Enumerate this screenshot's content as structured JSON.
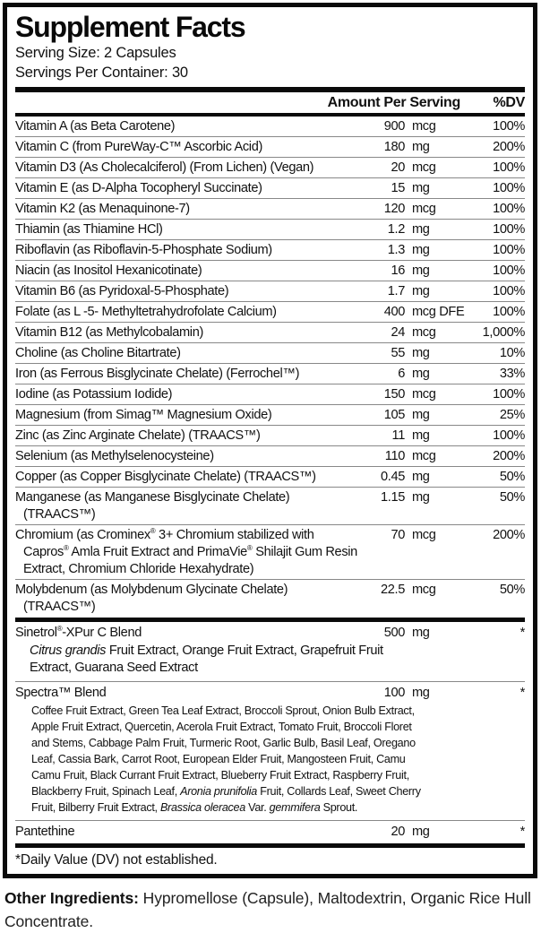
{
  "panel": {
    "title": "Supplement Facts",
    "serving_size": "Serving Size: 2 Capsules",
    "servings_per_container": "Servings Per Container: 30",
    "columns": {
      "amount": "Amount Per Serving",
      "dv": "%DV"
    },
    "footnote": "*Daily Value (DV) not established."
  },
  "nutrients": [
    {
      "name": "Vitamin A (as Beta Carotene)",
      "amount": "900",
      "unit": "mcg",
      "dv": "100%"
    },
    {
      "name": "Vitamin C (from PureWay-C™ Ascorbic Acid)",
      "amount": "180",
      "unit": "mg",
      "dv": "200%"
    },
    {
      "name": "Vitamin D3 (As Cholecalciferol) (From Lichen) (Vegan)",
      "amount": "20",
      "unit": "mcg",
      "dv": "100%"
    },
    {
      "name": "Vitamin E (as D-Alpha Tocopheryl Succinate)",
      "amount": "15",
      "unit": "mg",
      "dv": "100%"
    },
    {
      "name": "Vitamin K2 (as Menaquinone-7)",
      "amount": "120",
      "unit": "mcg",
      "dv": "100%"
    },
    {
      "name": "Thiamin (as Thiamine HCl)",
      "amount": "1.2",
      "unit": "mg",
      "dv": "100%"
    },
    {
      "name": "Riboflavin (as Riboflavin-5-Phosphate Sodium)",
      "amount": "1.3",
      "unit": "mg",
      "dv": "100%"
    },
    {
      "name": "Niacin (as Inositol Hexanicotinate)",
      "amount": "16",
      "unit": "mg",
      "dv": "100%"
    },
    {
      "name": "Vitamin B6 (as Pyridoxal-5-Phosphate)",
      "amount": "1.7",
      "unit": "mg",
      "dv": "100%"
    },
    {
      "name": "Folate (as L -5- Methyltetrahydrofolate Calcium)",
      "amount": "400",
      "unit": "mcg DFE",
      "dv": "100%"
    },
    {
      "name": "Vitamin B12 (as Methylcobalamin)",
      "amount": "24",
      "unit": "mcg",
      "dv": "1,000%"
    },
    {
      "name": "Choline (as Choline Bitartrate)",
      "amount": "55",
      "unit": "mg",
      "dv": "10%"
    },
    {
      "name": "Iron (as Ferrous Bisglycinate Chelate) (Ferrochel™)",
      "amount": "6",
      "unit": "mg",
      "dv": "33%"
    },
    {
      "name": "Iodine (as Potassium Iodide)",
      "amount": "150",
      "unit": "mcg",
      "dv": "100%"
    },
    {
      "name": "Magnesium (from Simag™ Magnesium Oxide)",
      "amount": "105",
      "unit": "mg",
      "dv": "25%"
    },
    {
      "name": "Zinc (as Zinc Arginate Chelate) (TRAACS™)",
      "amount": "11",
      "unit": "mg",
      "dv": "100%"
    },
    {
      "name": "Selenium (as Methylselenocysteine)",
      "amount": "110",
      "unit": "mcg",
      "dv": "200%"
    },
    {
      "name": "Copper (as Copper Bisglycinate Chelate) (TRAACS™)",
      "amount": "0.45",
      "unit": "mg",
      "dv": "50%"
    },
    {
      "name": "Manganese (as Manganese Bisglycinate Chelate) (TRAACS™)",
      "amount": "1.15",
      "unit": "mg",
      "dv": "50%"
    },
    {
      "name": [
        {
          "t": "Chromium (as Crominex"
        },
        {
          "t": "®",
          "sup": true
        },
        {
          "t": " 3+ Chromium stabilized with Capros"
        },
        {
          "t": "®",
          "sup": true
        },
        {
          "t": " Amla Fruit Extract and PrimaVie"
        },
        {
          "t": "®",
          "sup": true
        },
        {
          "t": " Shilajit Gum Resin Extract, Chromium Chloride Hexahydrate)"
        }
      ],
      "amount": "70",
      "unit": "mcg",
      "dv": "200%"
    },
    {
      "name": "Molybdenum (as Molybdenum Glycinate Chelate) (TRAACS™)",
      "amount": "22.5",
      "unit": "mcg",
      "dv": "50%"
    }
  ],
  "blends": [
    {
      "name": [
        {
          "t": "Sinetrol"
        },
        {
          "t": "®",
          "sup": true
        },
        {
          "t": "-XPur C Blend"
        }
      ],
      "amount": "500",
      "unit": "mg",
      "dv": "*",
      "sub": [
        {
          "t": "Citrus grandis",
          "i": true
        },
        {
          "t": " Fruit Extract, Orange Fruit Extract, Grapefruit Fruit Extract, Guarana Seed Extract"
        }
      ],
      "sub_size": "normal"
    },
    {
      "name": "Spectra™ Blend",
      "amount": "100",
      "unit": "mg",
      "dv": "*",
      "sub": [
        {
          "t": "Coffee Fruit Extract, Green Tea Leaf Extract, Broccoli Sprout, Onion Bulb Extract, Apple Fruit Extract, Quercetin, Acerola Fruit Extract, Tomato Fruit, Broccoli Floret and Stems, Cabbage Palm Fruit, Turmeric Root, Garlic Bulb, Basil Leaf, Oregano Leaf, Cassia Bark, Carrot Root, European Elder Fruit, Mangosteen Fruit, Camu Camu Fruit, Black Currant Fruit Extract, Blueberry Fruit Extract, Raspberry Fruit, Blackberry Fruit, Spinach Leaf, "
        },
        {
          "t": "Aronia prunifolia",
          "i": true
        },
        {
          "t": " Fruit, Collards Leaf, Sweet Cherry Fruit, Bilberry Fruit Extract, "
        },
        {
          "t": "Brassica oleracea",
          "i": true
        },
        {
          "t": " Var. "
        },
        {
          "t": "gemmifera",
          "i": true
        },
        {
          "t": " Sprout."
        }
      ],
      "sub_size": "small"
    },
    {
      "name": "Pantethine",
      "amount": "20",
      "unit": "mg",
      "dv": "*"
    }
  ],
  "other_ingredients": {
    "lead": "Other Ingredients:",
    "text": " Hypromellose (Capsule), Maltodextrin, Organic Rice Hull Concentrate."
  }
}
